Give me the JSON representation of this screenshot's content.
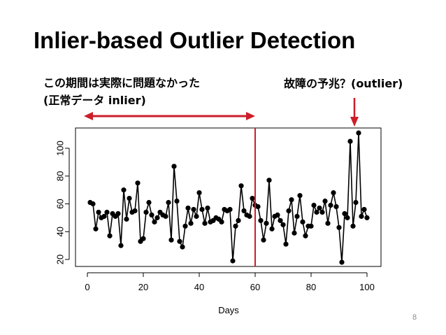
{
  "slide": {
    "title": "Inlier-based Outlier Detection",
    "note_left_line1": "この期間は実際に問題なかった",
    "note_left_line2": "(正常データ inlier)",
    "note_right": "故障の予兆？(outlier)",
    "page_number": "8"
  },
  "colors": {
    "arrow_range": "#cc1e2a",
    "divider_line": "#cc1e2a",
    "series": "#000000"
  },
  "chart_data": {
    "type": "line",
    "xlabel": "Days",
    "ylabel": "",
    "xlim": [
      0,
      100
    ],
    "ylim": [
      18,
      112
    ],
    "xticks": [
      0,
      20,
      40,
      60,
      80,
      100
    ],
    "yticks": [
      20,
      40,
      60,
      80,
      100
    ],
    "grid": false,
    "markers": "filled-circle",
    "vertical_line_x": 60,
    "range_arrow": [
      0,
      60
    ],
    "x": [
      1,
      2,
      3,
      4,
      5,
      6,
      7,
      8,
      9,
      10,
      11,
      12,
      13,
      14,
      15,
      16,
      17,
      18,
      19,
      20,
      21,
      22,
      23,
      24,
      25,
      26,
      27,
      28,
      29,
      30,
      31,
      32,
      33,
      34,
      35,
      36,
      37,
      38,
      39,
      40,
      41,
      42,
      43,
      44,
      45,
      46,
      47,
      48,
      49,
      50,
      51,
      52,
      53,
      54,
      55,
      56,
      57,
      58,
      59,
      60,
      61,
      62,
      63,
      64,
      65,
      66,
      67,
      68,
      69,
      70,
      71,
      72,
      73,
      74,
      75,
      76,
      77,
      78,
      79,
      80,
      81,
      82,
      83,
      84,
      85,
      86,
      87,
      88,
      89,
      90,
      91,
      92,
      93,
      94,
      95,
      96,
      97,
      98,
      99,
      100
    ],
    "y": [
      61,
      60,
      42,
      54,
      50,
      51,
      54,
      37,
      53,
      51,
      53,
      30,
      70,
      49,
      64,
      54,
      55,
      75,
      33,
      35,
      54,
      61,
      52,
      47,
      50,
      54,
      52,
      51,
      61,
      34,
      87,
      62,
      33,
      29,
      44,
      57,
      46,
      56,
      51,
      68,
      56,
      46,
      57,
      47,
      48,
      50,
      49,
      47,
      56,
      55,
      56,
      19,
      44,
      48,
      73,
      55,
      52,
      51,
      64,
      59,
      58,
      48,
      34,
      46,
      77,
      42,
      51,
      52,
      48,
      45,
      31,
      55,
      63,
      39,
      51,
      66,
      47,
      37,
      44,
      44,
      59,
      54,
      57,
      54,
      62,
      46,
      59,
      68,
      58,
      43,
      18,
      53,
      50,
      105,
      44,
      61,
      111,
      51,
      56,
      50
    ]
  }
}
